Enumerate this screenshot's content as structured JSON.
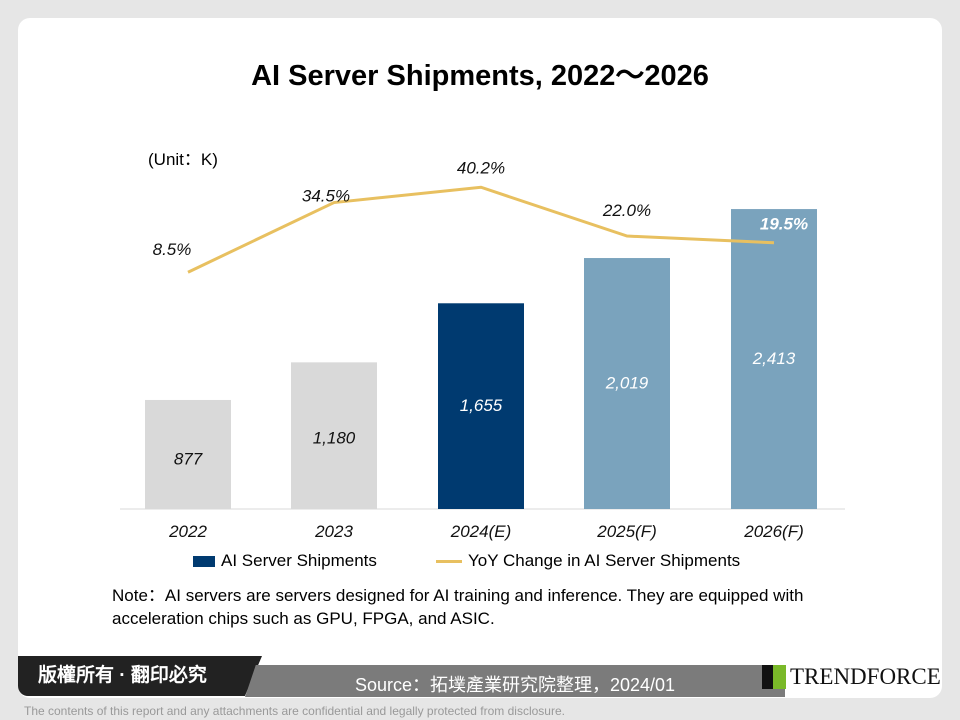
{
  "chart_data": {
    "type": "bar+line",
    "title": "AI Server Shipments, 2022～2026",
    "unit_label": "(Unit：K)",
    "categories": [
      "2022",
      "2023",
      "2024(E)",
      "2025(F)",
      "2026(F)"
    ],
    "series": [
      {
        "name": "AI Server Shipments",
        "type": "bar",
        "values": [
          877,
          1180,
          1655,
          2019,
          2413
        ],
        "labels": [
          "877",
          "1,180",
          "1,655",
          "2,019",
          "2,413"
        ],
        "colors": [
          "#d9d9d9",
          "#d9d9d9",
          "#003a70",
          "#7aa3bd",
          "#7aa3bd"
        ]
      },
      {
        "name": "YoY Change in AI Server Shipments",
        "type": "line",
        "values": [
          8.5,
          34.5,
          40.2,
          22.0,
          19.5
        ],
        "labels": [
          "8.5%",
          "34.5%",
          "40.2%",
          "22.0%",
          "19.5%"
        ],
        "color": "#e8c060"
      }
    ],
    "legend": "bottom",
    "grid": false
  },
  "note": "Note：AI servers are servers designed for AI  training and inference. They are equipped with acceleration chips such as GPU, FPGA, and ASIC.",
  "footer": {
    "copyright": "版權所有 · 翻印必究",
    "source": "Source：拓墣產業研究院整理，2024/01",
    "logo": "TRENDFORCE",
    "disclaimer": "The contents of this report and any attachments are confidential and legally protected from disclosure."
  }
}
